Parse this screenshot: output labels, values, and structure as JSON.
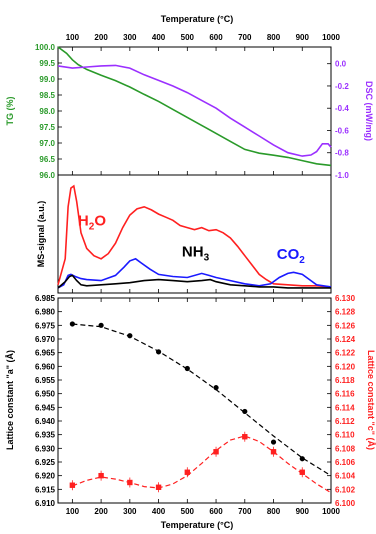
{
  "colors": {
    "tg": "#2a9a2a",
    "dsc": "#9b30ff",
    "h2o": "#ff2020",
    "nh3": "#000000",
    "co2": "#1a1aff",
    "a_axis": "#000000",
    "c_axis": "#ff2020"
  },
  "chart_data": [
    {
      "type": "line",
      "panel": "thermal",
      "title": "",
      "xlabel_top": "Temperature (°C)",
      "xlim": [
        50,
        1000
      ],
      "xticks": [
        "100",
        "200",
        "300",
        "400",
        "500",
        "600",
        "700",
        "800",
        "900",
        "1000"
      ],
      "ylabel": "TG (%)",
      "ylim": [
        96.0,
        100.0
      ],
      "yticks": [
        "96.0",
        "96.5",
        "97.0",
        "97.5",
        "98.0",
        "98.5",
        "99.0",
        "99.5",
        "100.0"
      ],
      "y2label": "DSC (mW/mg)",
      "y2lim": [
        -1.0,
        0.15
      ],
      "y2ticks": [
        "0.0",
        "-0.2",
        "-0.4",
        "-0.6",
        "-0.8",
        "-1.0"
      ],
      "series": [
        {
          "axis": "left",
          "x": [
            50,
            80,
            100,
            120,
            150,
            200,
            250,
            300,
            350,
            400,
            450,
            500,
            550,
            600,
            650,
            700,
            750,
            800,
            850,
            900,
            950,
            1000
          ],
          "y": [
            100.0,
            99.8,
            99.6,
            99.45,
            99.3,
            99.12,
            98.95,
            98.75,
            98.52,
            98.3,
            98.05,
            97.8,
            97.55,
            97.3,
            97.05,
            96.8,
            96.68,
            96.62,
            96.55,
            96.45,
            96.35,
            96.3
          ]
        },
        {
          "axis": "right",
          "x": [
            50,
            100,
            150,
            200,
            250,
            300,
            350,
            400,
            450,
            500,
            550,
            600,
            650,
            700,
            750,
            800,
            850,
            900,
            930,
            950,
            970,
            990,
            1000
          ],
          "y": [
            -0.02,
            -0.04,
            -0.03,
            -0.02,
            -0.015,
            -0.04,
            -0.1,
            -0.15,
            -0.2,
            -0.26,
            -0.33,
            -0.4,
            -0.49,
            -0.57,
            -0.65,
            -0.73,
            -0.8,
            -0.83,
            -0.82,
            -0.79,
            -0.72,
            -0.72,
            -0.75
          ]
        }
      ]
    },
    {
      "type": "line",
      "panel": "ms",
      "title": "",
      "ylabel": "MS-signal (a.u.)",
      "xlim": [
        50,
        1000
      ],
      "ylim": [
        0,
        1
      ],
      "species_labels": [
        {
          "key": "h2o",
          "base": "H",
          "sub": "2",
          "tail": "O",
          "x": 168,
          "y": 0.62
        },
        {
          "key": "nh3",
          "base": "NH",
          "sub": "3",
          "tail": "",
          "x": 530,
          "y": 0.32
        },
        {
          "key": "co2",
          "base": "CO",
          "sub": "2",
          "tail": "",
          "x": 860,
          "y": 0.3
        }
      ],
      "series": [
        {
          "key": "h2o",
          "x": [
            50,
            75,
            85,
            95,
            105,
            115,
            130,
            150,
            175,
            200,
            225,
            250,
            275,
            300,
            325,
            350,
            375,
            400,
            425,
            450,
            475,
            500,
            525,
            550,
            575,
            600,
            625,
            650,
            675,
            700,
            725,
            750,
            775,
            800,
            850,
            900,
            950,
            1000
          ],
          "y": [
            0.05,
            0.3,
            0.8,
            0.98,
            1.0,
            0.85,
            0.55,
            0.4,
            0.33,
            0.3,
            0.35,
            0.45,
            0.6,
            0.72,
            0.78,
            0.8,
            0.77,
            0.73,
            0.7,
            0.67,
            0.62,
            0.6,
            0.58,
            0.6,
            0.57,
            0.58,
            0.55,
            0.5,
            0.42,
            0.33,
            0.24,
            0.15,
            0.1,
            0.06,
            0.05,
            0.04,
            0.04,
            0.03
          ]
        },
        {
          "key": "co2",
          "x": [
            50,
            70,
            85,
            95,
            110,
            130,
            150,
            200,
            250,
            280,
            300,
            320,
            340,
            370,
            400,
            450,
            500,
            550,
            575,
            600,
            650,
            700,
            750,
            790,
            820,
            850,
            870,
            900,
            930,
            950,
            1000
          ],
          "y": [
            0.02,
            0.05,
            0.14,
            0.15,
            0.13,
            0.11,
            0.1,
            0.09,
            0.14,
            0.22,
            0.28,
            0.3,
            0.26,
            0.2,
            0.15,
            0.13,
            0.12,
            0.16,
            0.14,
            0.12,
            0.09,
            0.06,
            0.04,
            0.06,
            0.12,
            0.16,
            0.17,
            0.15,
            0.09,
            0.05,
            0.03
          ]
        },
        {
          "key": "nh3",
          "x": [
            50,
            75,
            90,
            100,
            115,
            130,
            150,
            200,
            250,
            300,
            350,
            400,
            450,
            500,
            550,
            580,
            600,
            650,
            700,
            750,
            800,
            850,
            900,
            950,
            1000
          ],
          "y": [
            0.02,
            0.08,
            0.13,
            0.14,
            0.09,
            0.05,
            0.04,
            0.05,
            0.06,
            0.07,
            0.09,
            0.1,
            0.09,
            0.08,
            0.09,
            0.1,
            0.08,
            0.05,
            0.04,
            0.03,
            0.03,
            0.02,
            0.02,
            0.02,
            0.02
          ]
        }
      ]
    },
    {
      "type": "scatter",
      "panel": "lattice",
      "title": "",
      "xlabel": "Temperature (°C)",
      "xlim": [
        50,
        1000
      ],
      "xticks": [
        "100",
        "200",
        "300",
        "400",
        "500",
        "600",
        "700",
        "800",
        "900",
        "1000"
      ],
      "ylabel": "Lattice constant \"a\" (Å)",
      "ylim": [
        6.91,
        6.985
      ],
      "yticks": [
        "6.910",
        "6.915",
        "6.920",
        "6.925",
        "6.930",
        "6.935",
        "6.940",
        "6.945",
        "6.950",
        "6.955",
        "6.960",
        "6.965",
        "6.970",
        "6.975",
        "6.980",
        "6.985"
      ],
      "y2label": "Lattice constant \"c\" (Å)",
      "y2lim": [
        6.1,
        6.13
      ],
      "y2ticks": [
        "6.100",
        "6.102",
        "6.104",
        "6.106",
        "6.108",
        "6.110",
        "6.112",
        "6.114",
        "6.116",
        "6.118",
        "6.120",
        "6.122",
        "6.124",
        "6.126",
        "6.128",
        "6.130"
      ],
      "series": [
        {
          "axis": "left",
          "marker": "circle",
          "x": [
            100,
            200,
            300,
            400,
            500,
            600,
            700,
            800,
            900
          ],
          "y": [
            6.9755,
            6.975,
            6.9712,
            6.9653,
            6.9592,
            6.9522,
            6.9435,
            6.9323,
            6.9262
          ],
          "fit_x": [
            100,
            200,
            300,
            400,
            500,
            600,
            700,
            800,
            900,
            1000
          ],
          "fit_y": [
            6.9755,
            6.9745,
            6.971,
            6.9655,
            6.959,
            6.9515,
            6.943,
            6.9345,
            6.9265,
            6.92
          ]
        },
        {
          "axis": "right",
          "marker": "square",
          "x": [
            100,
            200,
            300,
            400,
            500,
            600,
            700,
            800,
            900
          ],
          "y": [
            6.1026,
            6.104,
            6.103,
            6.1023,
            6.1045,
            6.1075,
            6.1097,
            6.1075,
            6.1045
          ],
          "fit_x": [
            100,
            150,
            200,
            250,
            300,
            350,
            400,
            450,
            500,
            550,
            600,
            650,
            700,
            750,
            800,
            850,
            900,
            950,
            1000
          ],
          "fit_y": [
            6.1025,
            6.1033,
            6.1038,
            6.1035,
            6.103,
            6.1024,
            6.1022,
            6.1028,
            6.104,
            6.1058,
            6.1077,
            6.1092,
            6.1098,
            6.109,
            6.1075,
            6.1058,
            6.1043,
            6.1028,
            6.1015
          ]
        }
      ]
    }
  ]
}
